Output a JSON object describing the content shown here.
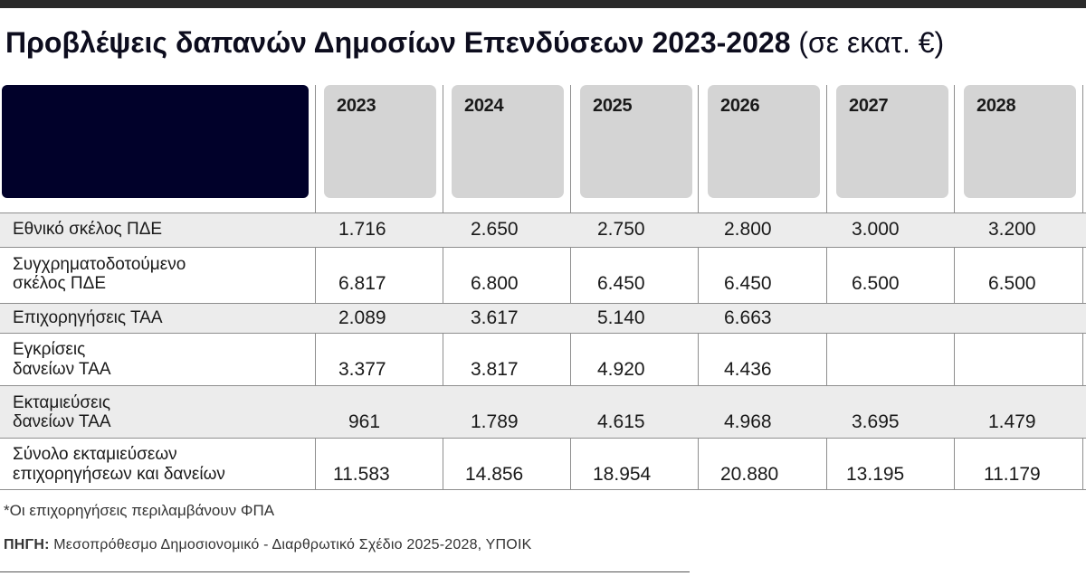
{
  "title": {
    "main": "Προβλέψεις δαπανών Δημοσίων Επενδύσεων 2023-2028",
    "unit": "(σε εκατ. €)"
  },
  "years": [
    "2023",
    "2024",
    "2025",
    "2026",
    "2027",
    "2028"
  ],
  "rows": [
    {
      "label_line1": "Εθνικό σκέλος ΠΔΕ",
      "label_line2": "",
      "values": [
        "1.716",
        "2.650",
        "2.750",
        "2.800",
        "3.000",
        "3.200"
      ]
    },
    {
      "label_line1": "Συγχρηματοδοτούμενο",
      "label_line2": "σκέλος ΠΔΕ",
      "values": [
        "6.817",
        "6.800",
        "6.450",
        "6.450",
        "6.500",
        "6.500"
      ]
    },
    {
      "label_line1": "Επιχορηγήσεις ΤΑΑ",
      "label_line2": "",
      "values": [
        "2.089",
        "3.617",
        "5.140",
        "6.663",
        "",
        ""
      ]
    },
    {
      "label_line1": "Εγκρίσεις",
      "label_line2": "δανείων ΤΑΑ",
      "values": [
        "3.377",
        "3.817",
        "4.920",
        "4.436",
        "",
        ""
      ]
    },
    {
      "label_line1": "Εκταμιεύσεις",
      "label_line2": "δανείων ΤΑΑ",
      "values": [
        "961",
        "1.789",
        "4.615",
        "4.968",
        "3.695",
        "1.479"
      ]
    },
    {
      "label_line1": "Σύνολο εκταμιεύσεων",
      "label_line2": "επιχορηγήσεων και δανείων",
      "values": [
        "11.583",
        "14.856",
        "18.954",
        "20.880",
        "13.195",
        "11.179"
      ]
    }
  ],
  "footnote": "*Οι επιχορηγήσεις περιλαμβάνουν ΦΠΑ",
  "source": {
    "label": "ΠΗΓΗ:",
    "text": "Μεσοπρόθεσμο Δημοσιονομικό - Διαρθρωτικό Σχέδιο 2025-2028, ΥΠΟΙΚ"
  },
  "colors": {
    "header_label_box": "#01012a",
    "year_box": "#d4d4d4",
    "shaded_row": "#ececec",
    "top_bar": "#2a2a2a"
  }
}
